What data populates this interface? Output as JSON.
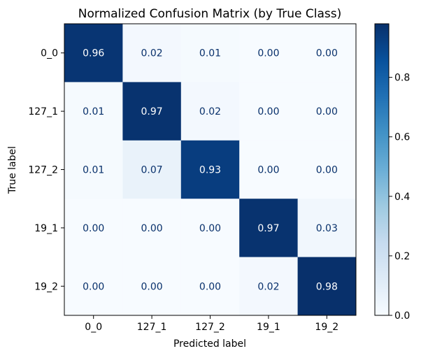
{
  "chart_data": {
    "type": "heatmap",
    "title": "Normalized Confusion Matrix (by True Class)",
    "xlabel": "Predicted label",
    "ylabel": "True label",
    "x_categories": [
      "0_0",
      "127_1",
      "127_2",
      "19_1",
      "19_2"
    ],
    "y_categories": [
      "0_0",
      "127_1",
      "127_2",
      "19_1",
      "19_2"
    ],
    "values": [
      [
        0.96,
        0.02,
        0.01,
        0.0,
        0.0
      ],
      [
        0.01,
        0.97,
        0.02,
        0.0,
        0.0
      ],
      [
        0.01,
        0.07,
        0.93,
        0.0,
        0.0
      ],
      [
        0.0,
        0.0,
        0.0,
        0.97,
        0.03
      ],
      [
        0.0,
        0.0,
        0.0,
        0.02,
        0.98
      ]
    ],
    "value_format": "0.00",
    "colormap": "Blues",
    "colormap_stops": [
      "#f7fbff",
      "#deebf7",
      "#c6dbef",
      "#9ecae1",
      "#6baed6",
      "#4292c6",
      "#2171b5",
      "#08519c",
      "#08306b"
    ],
    "colorbar": {
      "min": 0.0,
      "max": 0.98,
      "ticks": [
        "0.0",
        "0.2",
        "0.4",
        "0.6",
        "0.8"
      ]
    },
    "colors": {
      "text_dark": "#08306b",
      "text_light": "#ffffff"
    }
  }
}
